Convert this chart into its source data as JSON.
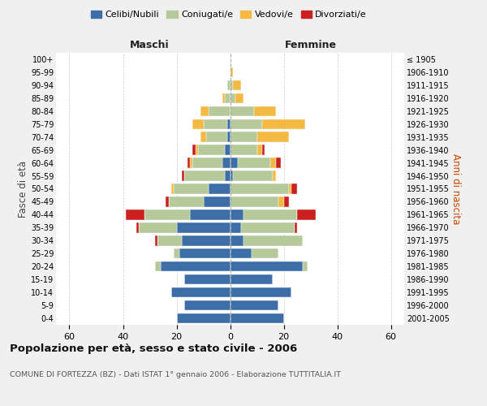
{
  "age_groups": [
    "0-4",
    "5-9",
    "10-14",
    "15-19",
    "20-24",
    "25-29",
    "30-34",
    "35-39",
    "40-44",
    "45-49",
    "50-54",
    "55-59",
    "60-64",
    "65-69",
    "70-74",
    "75-79",
    "80-84",
    "85-89",
    "90-94",
    "95-99",
    "100+"
  ],
  "birth_years": [
    "2001-2005",
    "1996-2000",
    "1991-1995",
    "1986-1990",
    "1981-1985",
    "1976-1980",
    "1971-1975",
    "1966-1970",
    "1961-1965",
    "1956-1960",
    "1951-1955",
    "1946-1950",
    "1941-1945",
    "1936-1940",
    "1931-1935",
    "1926-1930",
    "1921-1925",
    "1916-1920",
    "1911-1915",
    "1906-1910",
    "≤ 1905"
  ],
  "maschi": {
    "celibi": [
      20,
      17,
      22,
      17,
      26,
      19,
      18,
      20,
      15,
      10,
      8,
      2,
      3,
      2,
      1,
      1,
      0,
      0,
      0,
      0,
      0
    ],
    "coniugati": [
      0,
      0,
      0,
      0,
      2,
      2,
      9,
      14,
      17,
      13,
      13,
      15,
      11,
      10,
      8,
      9,
      8,
      2,
      1,
      0,
      0
    ],
    "vedovi": [
      0,
      0,
      0,
      0,
      0,
      0,
      0,
      0,
      0,
      0,
      1,
      0,
      1,
      1,
      2,
      4,
      3,
      1,
      0,
      0,
      0
    ],
    "divorziati": [
      0,
      0,
      0,
      0,
      0,
      0,
      1,
      1,
      7,
      1,
      0,
      1,
      1,
      1,
      0,
      0,
      0,
      0,
      0,
      0,
      0
    ]
  },
  "femmine": {
    "nubili": [
      20,
      18,
      23,
      16,
      27,
      8,
      5,
      4,
      5,
      0,
      0,
      1,
      3,
      0,
      0,
      0,
      0,
      0,
      0,
      0,
      0
    ],
    "coniugate": [
      0,
      0,
      0,
      0,
      2,
      10,
      22,
      20,
      20,
      18,
      22,
      15,
      12,
      10,
      10,
      12,
      9,
      2,
      1,
      0,
      0
    ],
    "vedove": [
      0,
      0,
      0,
      0,
      0,
      0,
      0,
      0,
      0,
      2,
      1,
      1,
      2,
      2,
      12,
      16,
      8,
      3,
      3,
      1,
      0
    ],
    "divorziate": [
      0,
      0,
      0,
      0,
      0,
      0,
      0,
      1,
      7,
      2,
      2,
      0,
      2,
      1,
      0,
      0,
      0,
      0,
      0,
      0,
      0
    ]
  },
  "colors": {
    "celibi": "#3d6ea8",
    "coniugati": "#b5c99a",
    "vedovi": "#f4b942",
    "divorziati": "#cc2020"
  },
  "xlim": 65,
  "title": "Popolazione per età, sesso e stato civile - 2006",
  "subtitle": "COMUNE DI FORTEZZA (BZ) - Dati ISTAT 1° gennaio 2006 - Elaborazione TUTTITALIA.IT",
  "ylabel_left": "Fasce di età",
  "ylabel_right": "Anni di nascita",
  "xlabel_maschi": "Maschi",
  "xlabel_femmine": "Femmine",
  "bg_color": "#f0f0f0",
  "plot_bg": "#ffffff",
  "legend_labels": [
    "Celibi/Nubili",
    "Coniugati/e",
    "Vedovi/e",
    "Divorziati/e"
  ]
}
